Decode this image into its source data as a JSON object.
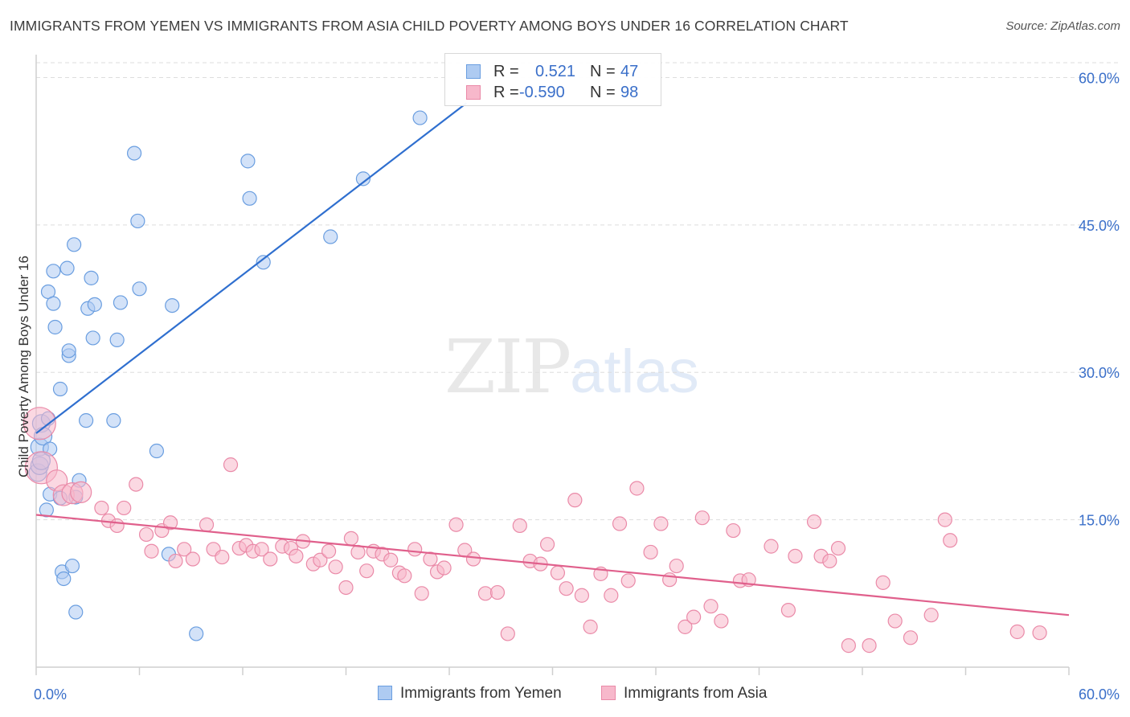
{
  "title": "IMMIGRANTS FROM YEMEN VS IMMIGRANTS FROM ASIA CHILD POVERTY AMONG BOYS UNDER 16 CORRELATION CHART",
  "source": "Source: ZipAtlas.com",
  "watermark": {
    "zip": "ZIP",
    "atlas": "atlas"
  },
  "legend": {
    "rows": [
      {
        "r_label": "R =",
        "r_value": "0.521",
        "n_label": "N =",
        "n_value": "47"
      },
      {
        "r_label": "R =",
        "r_value": "-0.590",
        "n_label": "N =",
        "n_value": "98"
      }
    ]
  },
  "colors": {
    "yemen_fill": "#aecbf2",
    "yemen_stroke": "#6a9ee0",
    "yemen_line": "#2f6fcf",
    "asia_fill": "#f7b8cb",
    "asia_stroke": "#ea8aa8",
    "asia_line": "#e0608c",
    "tick_label": "#3a6fc9",
    "grid": "#dddddd"
  },
  "chart_data": {
    "type": "scatter",
    "title": "IMMIGRANTS FROM YEMEN VS IMMIGRANTS FROM ASIA CHILD POVERTY AMONG BOYS UNDER 16 CORRELATION CHART",
    "xlabel": "",
    "ylabel": "Child Poverty Among Boys Under 16",
    "xlim": [
      0,
      60
    ],
    "ylim": [
      0,
      62
    ],
    "x_tick_labels": [
      "0.0%",
      "60.0%"
    ],
    "y_ticks": [
      15,
      30,
      45,
      60
    ],
    "y_tick_labels": [
      "15.0%",
      "30.0%",
      "45.0%",
      "60.0%"
    ],
    "grid": true,
    "legend_position": "bottom",
    "series": [
      {
        "name": "Immigrants from Yemen",
        "points": [
          [
            0.1,
            19.8
          ],
          [
            0.2,
            20.5
          ],
          [
            0.2,
            22.4
          ],
          [
            0.3,
            21.0
          ],
          [
            0.3,
            24.8
          ],
          [
            0.4,
            23.5
          ],
          [
            0.6,
            16.0
          ],
          [
            0.7,
            25.3
          ],
          [
            0.8,
            22.2
          ],
          [
            0.8,
            17.6
          ],
          [
            0.7,
            38.2
          ],
          [
            1.0,
            40.3
          ],
          [
            1.0,
            37.0
          ],
          [
            1.1,
            34.6
          ],
          [
            1.4,
            28.3
          ],
          [
            1.4,
            17.2
          ],
          [
            1.5,
            9.7
          ],
          [
            1.6,
            9.0
          ],
          [
            1.8,
            40.6
          ],
          [
            1.9,
            31.7
          ],
          [
            1.9,
            32.2
          ],
          [
            2.1,
            10.3
          ],
          [
            2.2,
            43.0
          ],
          [
            2.3,
            5.6
          ],
          [
            2.3,
            17.3
          ],
          [
            2.5,
            19.0
          ],
          [
            2.9,
            25.1
          ],
          [
            3.0,
            36.5
          ],
          [
            3.2,
            39.6
          ],
          [
            3.3,
            33.5
          ],
          [
            3.4,
            36.9
          ],
          [
            4.5,
            25.1
          ],
          [
            4.7,
            33.3
          ],
          [
            4.9,
            37.1
          ],
          [
            5.7,
            52.3
          ],
          [
            5.9,
            45.4
          ],
          [
            6.0,
            38.5
          ],
          [
            7.0,
            22.0
          ],
          [
            7.7,
            11.5
          ],
          [
            7.9,
            36.8
          ],
          [
            9.3,
            3.4
          ],
          [
            12.3,
            51.5
          ],
          [
            12.4,
            47.7
          ],
          [
            13.2,
            41.2
          ],
          [
            17.1,
            43.8
          ],
          [
            19.0,
            49.7
          ],
          [
            22.3,
            55.9
          ]
        ]
      },
      {
        "name": "Immigrants from Asia",
        "points": [
          [
            0.2,
            24.8
          ],
          [
            0.3,
            20.3
          ],
          [
            1.2,
            19.0
          ],
          [
            1.6,
            17.5
          ],
          [
            2.1,
            17.7
          ],
          [
            2.6,
            17.8
          ],
          [
            3.8,
            16.2
          ],
          [
            5.1,
            16.2
          ],
          [
            4.2,
            14.9
          ],
          [
            4.7,
            14.4
          ],
          [
            5.8,
            18.6
          ],
          [
            6.4,
            13.5
          ],
          [
            6.7,
            11.8
          ],
          [
            7.3,
            13.9
          ],
          [
            7.8,
            14.7
          ],
          [
            8.1,
            10.8
          ],
          [
            8.6,
            12.0
          ],
          [
            9.1,
            11.0
          ],
          [
            9.9,
            14.5
          ],
          [
            10.3,
            12.0
          ],
          [
            10.8,
            11.2
          ],
          [
            11.3,
            20.6
          ],
          [
            11.8,
            12.1
          ],
          [
            12.2,
            12.4
          ],
          [
            12.6,
            11.8
          ],
          [
            13.1,
            12.0
          ],
          [
            13.6,
            11.0
          ],
          [
            14.3,
            12.3
          ],
          [
            14.8,
            12.1
          ],
          [
            15.1,
            11.3
          ],
          [
            15.5,
            12.8
          ],
          [
            16.1,
            10.5
          ],
          [
            16.5,
            10.9
          ],
          [
            17.0,
            11.8
          ],
          [
            17.4,
            10.2
          ],
          [
            18.0,
            8.1
          ],
          [
            18.3,
            13.1
          ],
          [
            18.7,
            11.7
          ],
          [
            19.2,
            9.8
          ],
          [
            19.6,
            11.8
          ],
          [
            20.1,
            11.5
          ],
          [
            20.6,
            10.9
          ],
          [
            21.1,
            9.6
          ],
          [
            21.4,
            9.3
          ],
          [
            22.0,
            12.0
          ],
          [
            22.4,
            7.5
          ],
          [
            22.9,
            11.0
          ],
          [
            23.3,
            9.7
          ],
          [
            23.7,
            10.1
          ],
          [
            24.4,
            14.5
          ],
          [
            24.9,
            11.9
          ],
          [
            25.4,
            11.0
          ],
          [
            26.1,
            7.5
          ],
          [
            26.8,
            7.6
          ],
          [
            27.4,
            3.4
          ],
          [
            28.1,
            14.4
          ],
          [
            28.7,
            10.8
          ],
          [
            29.3,
            10.5
          ],
          [
            29.7,
            12.5
          ],
          [
            30.3,
            9.6
          ],
          [
            30.8,
            8.0
          ],
          [
            31.3,
            17.0
          ],
          [
            31.7,
            7.3
          ],
          [
            32.2,
            4.1
          ],
          [
            32.8,
            9.5
          ],
          [
            33.4,
            7.3
          ],
          [
            33.9,
            14.6
          ],
          [
            34.4,
            8.8
          ],
          [
            34.9,
            18.2
          ],
          [
            35.7,
            11.7
          ],
          [
            36.3,
            14.6
          ],
          [
            36.8,
            8.9
          ],
          [
            37.2,
            10.3
          ],
          [
            37.7,
            4.1
          ],
          [
            38.2,
            5.1
          ],
          [
            38.7,
            15.2
          ],
          [
            39.2,
            6.2
          ],
          [
            39.8,
            4.7
          ],
          [
            40.5,
            13.9
          ],
          [
            40.9,
            8.8
          ],
          [
            41.4,
            8.9
          ],
          [
            42.7,
            12.3
          ],
          [
            43.7,
            5.8
          ],
          [
            44.1,
            11.3
          ],
          [
            45.2,
            14.8
          ],
          [
            45.6,
            11.3
          ],
          [
            46.1,
            10.8
          ],
          [
            46.6,
            12.1
          ],
          [
            47.2,
            2.2
          ],
          [
            48.4,
            2.2
          ],
          [
            49.2,
            8.6
          ],
          [
            49.9,
            4.7
          ],
          [
            50.8,
            3.0
          ],
          [
            52.0,
            5.3
          ],
          [
            52.8,
            15.0
          ],
          [
            53.1,
            12.9
          ],
          [
            57.0,
            3.6
          ],
          [
            58.3,
            3.5
          ]
        ]
      }
    ],
    "trend_lines": [
      {
        "series": "Immigrants from Yemen",
        "x": [
          0.0,
          25.0
        ],
        "y": [
          23.8,
          57.4
        ]
      },
      {
        "series": "Immigrants from Asia",
        "x": [
          0.0,
          60.0
        ],
        "y": [
          15.5,
          5.3
        ]
      }
    ]
  }
}
